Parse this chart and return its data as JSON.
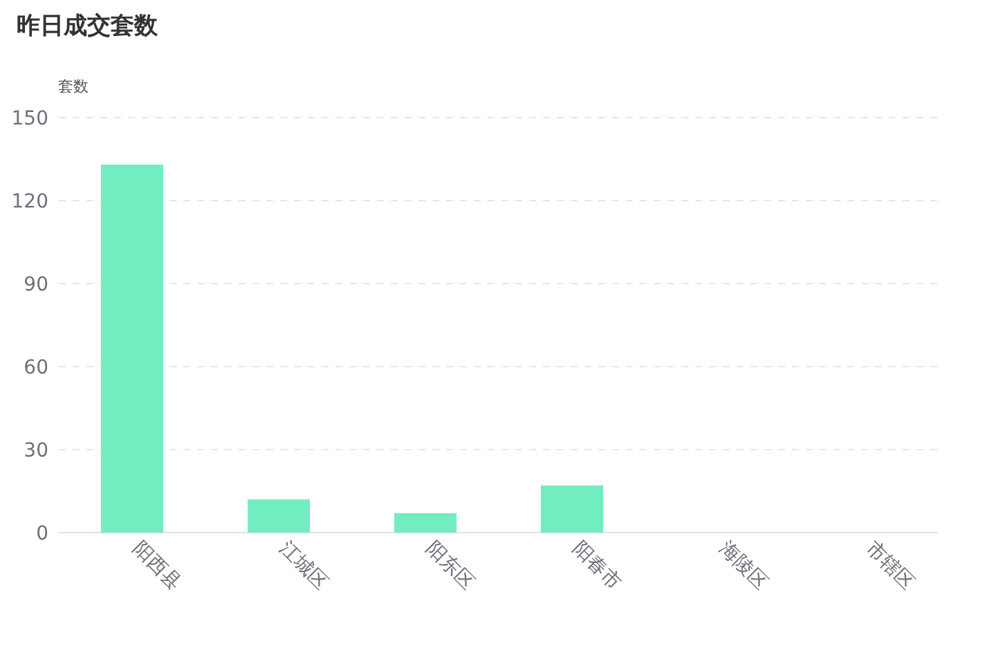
{
  "chart_data": {
    "type": "bar",
    "title": "昨日成交套数",
    "ylabel": "套数",
    "categories": [
      "阳西县",
      "江城区",
      "阳东区",
      "阳春市",
      "海陵区",
      "市辖区"
    ],
    "values": [
      133,
      12,
      7,
      17,
      0,
      0
    ],
    "color": "#72edc0",
    "ylim": [
      0,
      150
    ],
    "yticks": [
      0,
      30,
      60,
      90,
      120,
      150
    ],
    "grid": "y"
  }
}
